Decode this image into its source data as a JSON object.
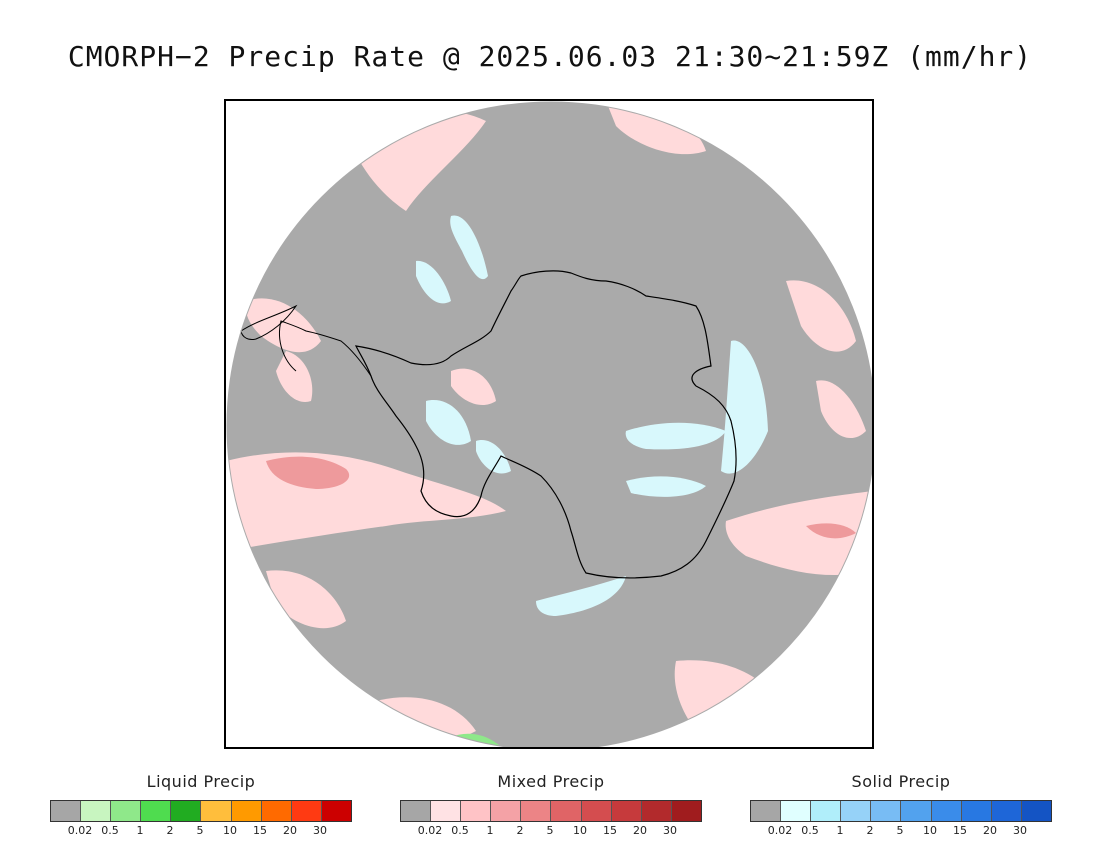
{
  "title": "CMORPH−2 Precip Rate @ 2025.06.03 21:30~21:59Z (mm/hr)",
  "map": {
    "region": "south-polar-stereographic",
    "background_color": "#aaaaaa",
    "coastline_color": "#000000"
  },
  "legends": [
    {
      "name": "Liquid Precip",
      "colors": [
        "#a6a6a6",
        "#c8f5c0",
        "#8fe88a",
        "#4fdc4f",
        "#21ac21",
        "#ffbe3c",
        "#ff9a00",
        "#ff6a00",
        "#ff3a12",
        "#cc0000"
      ],
      "ticks": [
        "0.02",
        "0.5",
        "1",
        "2",
        "5",
        "10",
        "15",
        "20",
        "30"
      ]
    },
    {
      "name": "Mixed Precip",
      "colors": [
        "#a6a6a6",
        "#ffe2e4",
        "#ffc3c6",
        "#f4a2a6",
        "#ec8486",
        "#e06466",
        "#d44d4f",
        "#c63a3c",
        "#b22a2c",
        "#a01c1e"
      ],
      "ticks": [
        "0.02",
        "0.5",
        "1",
        "2",
        "5",
        "10",
        "15",
        "20",
        "30"
      ]
    },
    {
      "name": "Solid Precip",
      "colors": [
        "#a6a6a6",
        "#e0ffff",
        "#b0eefa",
        "#96d2f8",
        "#78bcf4",
        "#52a2ee",
        "#3a8cea",
        "#2878e2",
        "#1e66d8",
        "#1454c4"
      ],
      "ticks": [
        "0.02",
        "0.5",
        "1",
        "2",
        "5",
        "10",
        "15",
        "20",
        "30"
      ]
    }
  ]
}
